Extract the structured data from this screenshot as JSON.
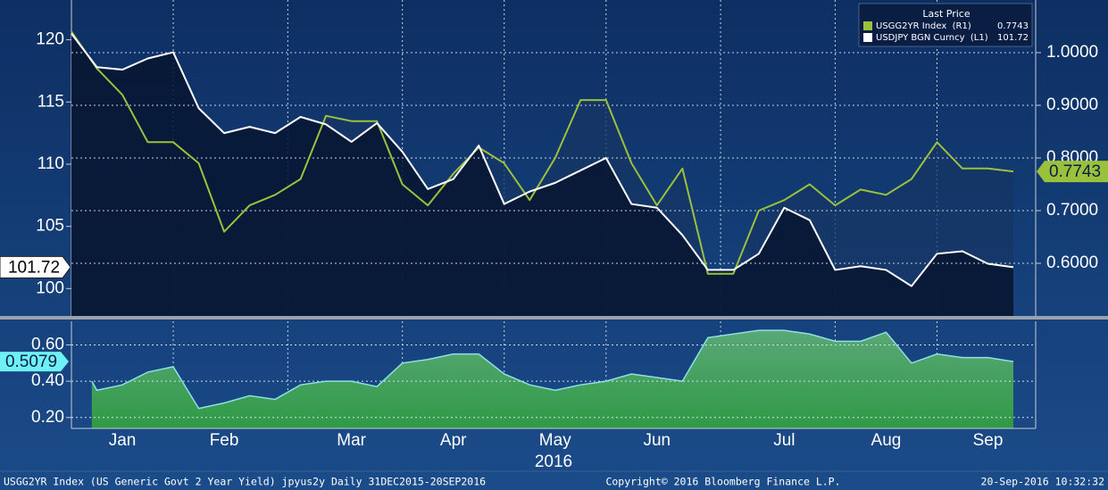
{
  "chart_data": [
    {
      "type": "line",
      "categories": [
        null,
        null,
        "Jan",
        null,
        null,
        null,
        "Feb",
        null,
        null,
        null,
        null,
        "Mar",
        null,
        null,
        null,
        "Apr",
        null,
        null,
        null,
        "May",
        null,
        null,
        null,
        "Jun",
        null,
        null,
        null,
        null,
        "Jul",
        null,
        null,
        null,
        "Aug",
        null,
        null,
        null,
        "Sep",
        null
      ],
      "x_label": "2016",
      "legend_title": "Last Price",
      "series": [
        {
          "name": "USDJPY BGN Curncy  (L1)",
          "color": "#ffffff",
          "axis": "y",
          "values": [
            120.5,
            117.8,
            117.6,
            118.5,
            119,
            114.5,
            112.5,
            113,
            112.5,
            113.8,
            113.2,
            111.8,
            113.3,
            111,
            108,
            108.8,
            111.5,
            106.8,
            107.8,
            108.5,
            109.5,
            110.5,
            106.8,
            106.5,
            104.3,
            101.5,
            101.5,
            102.8,
            106.5,
            105.5,
            101.5,
            101.8,
            101.5,
            100.2,
            102.8,
            103,
            102,
            101.72
          ]
        },
        {
          "name": "USGG2YR Index  (R1)",
          "color": "#9bc13c",
          "axis": "y2",
          "values": [
            1.04,
            0.97,
            0.92,
            0.83,
            0.83,
            0.79,
            0.66,
            0.71,
            0.73,
            0.76,
            0.88,
            0.87,
            0.87,
            0.75,
            0.71,
            0.77,
            0.82,
            0.79,
            0.72,
            0.8,
            0.91,
            0.91,
            0.79,
            0.71,
            0.78,
            0.58,
            0.58,
            0.7,
            0.72,
            0.75,
            0.71,
            0.74,
            0.73,
            0.76,
            0.83,
            0.78,
            0.78,
            0.7743
          ]
        }
      ],
      "ylim": [
        97.8,
        123.2
      ],
      "yticks": [
        100,
        105,
        110,
        115,
        120
      ],
      "y2lim": [
        0.5,
        1.1
      ],
      "y2ticks": [
        {
          "value": 0.6,
          "label": "0.6000"
        },
        {
          "value": 0.7,
          "label": "0.7000"
        },
        {
          "value": 0.8,
          "label": "0.8000"
        },
        {
          "value": 0.9,
          "label": "0.9000"
        },
        {
          "value": 1.0,
          "label": "1.0000"
        }
      ],
      "grid": true
    },
    {
      "type": "area",
      "color": "#3f9a55",
      "line_color": "#8fe0e6",
      "values": [
        0.4,
        0.35,
        0.38,
        0.45,
        0.48,
        0.25,
        0.28,
        0.32,
        0.3,
        0.38,
        0.4,
        0.4,
        0.37,
        0.5,
        0.52,
        0.55,
        0.55,
        0.44,
        0.38,
        0.35,
        0.38,
        0.4,
        0.44,
        0.42,
        0.4,
        0.64,
        0.66,
        0.68,
        0.68,
        0.66,
        0.62,
        0.62,
        0.67,
        0.5,
        0.55,
        0.53,
        0.53,
        0.5079
      ],
      "ylim": [
        0.14,
        0.73
      ],
      "yticks": [
        {
          "value": 0.2,
          "label": "0.20"
        },
        {
          "value": 0.4,
          "label": "0.40"
        },
        {
          "value": 0.6,
          "label": "0.60"
        }
      ],
      "grid": true
    }
  ],
  "footer": {
    "left": "USGG2YR Index (US Generic Govt 2 Year Yield) jpyus2y  Daily 31DEC2015-20SEP2016",
    "center": "Copyright© 2016 Bloomberg Finance L.P.",
    "right": "20-Sep-2016 10:32:32"
  }
}
